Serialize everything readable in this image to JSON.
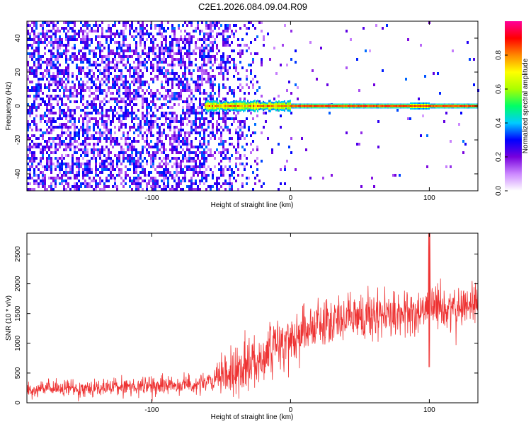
{
  "title": "C2E1.2026.084.09.04.R09",
  "chart_data": [
    {
      "type": "heatmap",
      "xlabel": "Height of straight line (km)",
      "ylabel": "Frequency (Hz)",
      "xlim": [
        -190,
        135
      ],
      "ylim": [
        -50,
        50
      ],
      "x_ticks": [
        -100,
        0,
        100
      ],
      "y_ticks": [
        -40,
        -20,
        0,
        20,
        40
      ],
      "colorbar": {
        "label": "Normalized spectral amplitude",
        "range": [
          0,
          1
        ],
        "ticks": [
          0.0,
          0.2,
          0.4,
          0.6,
          0.8
        ],
        "colormap": [
          "#ffffff",
          "#cc88ff",
          "#7700dd",
          "#0000ff",
          "#00ccff",
          "#00ff66",
          "#aaff00",
          "#ffff00",
          "#ff8800",
          "#ff0000",
          "#ff0099"
        ]
      },
      "regions": [
        {
          "x_range": [
            -190,
            -60
          ],
          "description_level": 0.3,
          "frequency_spread": [
            -50,
            50
          ]
        },
        {
          "x_range": [
            -60,
            -20
          ],
          "description_level": 0.15,
          "frequency_spread": [
            -50,
            50
          ]
        },
        {
          "x_range": [
            -62,
            135
          ],
          "signal_frequency": 0,
          "signal_level": 0.9
        }
      ]
    },
    {
      "type": "line",
      "xlabel": "Height of straight line (km)",
      "ylabel": "SNR (10 * v/v)",
      "xlim": [
        -190,
        135
      ],
      "ylim": [
        0,
        2850
      ],
      "x_ticks": [
        -100,
        0,
        100
      ],
      "y_ticks": [
        0,
        500,
        1000,
        1500,
        2000,
        2500
      ],
      "series_color": "#ee3333",
      "trend": {
        "x": [
          -190,
          -150,
          -100,
          -60,
          -40,
          -20,
          0,
          20,
          50,
          90,
          100,
          110,
          135
        ],
        "y": [
          220,
          250,
          280,
          330,
          520,
          800,
          1100,
          1350,
          1450,
          1500,
          1600,
          1550,
          1700
        ]
      },
      "spread": {
        "x": [
          -190,
          -60,
          -40,
          0,
          50,
          100,
          135
        ],
        "y": [
          120,
          150,
          400,
          400,
          350,
          350,
          350
        ]
      },
      "spike": {
        "x": 100,
        "y_max": 2850,
        "y_min": 600
      }
    }
  ]
}
